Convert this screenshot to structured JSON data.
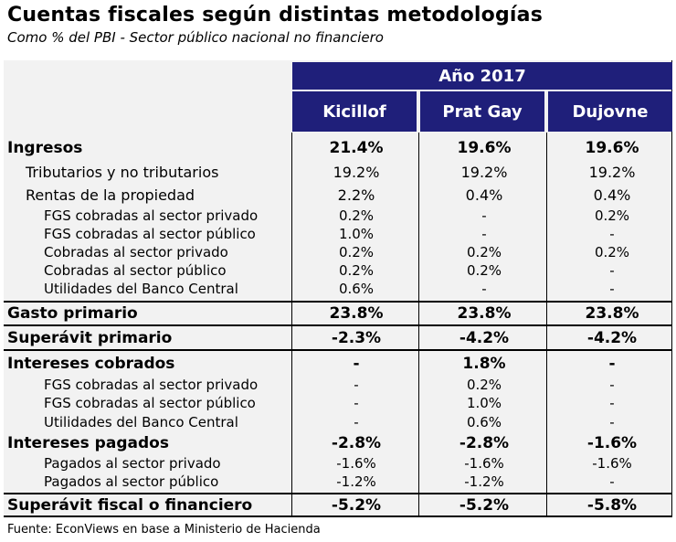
{
  "title": "Cuentas fiscales según distintas metodologías",
  "subtitle": "Como % del PBI - Sector público nacional no financiero",
  "header": {
    "year": "Año 2017",
    "columns": [
      "Kicillof",
      "Prat Gay",
      "Dujovne"
    ]
  },
  "rows": [
    {
      "label": "Ingresos",
      "values": [
        "21.4%",
        "19.6%",
        "19.6%"
      ]
    },
    {
      "label": "Tributarios y no tributarios",
      "values": [
        "19.2%",
        "19.2%",
        "19.2%"
      ]
    },
    {
      "label": "Rentas de la propiedad",
      "values": [
        "2.2%",
        "0.4%",
        "0.4%"
      ]
    },
    {
      "label": "FGS cobradas al sector privado",
      "values": [
        "0.2%",
        "-",
        "0.2%"
      ]
    },
    {
      "label": "FGS cobradas al sector público",
      "values": [
        "1.0%",
        "-",
        "-"
      ]
    },
    {
      "label": "Cobradas al sector privado",
      "values": [
        "0.2%",
        "0.2%",
        "0.2%"
      ]
    },
    {
      "label": "Cobradas al sector público",
      "values": [
        "0.2%",
        "0.2%",
        "-"
      ]
    },
    {
      "label": "Utilidades del Banco Central",
      "values": [
        "0.6%",
        "-",
        "-"
      ]
    },
    {
      "label": "Gasto primario",
      "values": [
        "23.8%",
        "23.8%",
        "23.8%"
      ]
    },
    {
      "label": "Superávit primario",
      "values": [
        "-2.3%",
        "-4.2%",
        "-4.2%"
      ]
    },
    {
      "label": "Intereses cobrados",
      "values": [
        "-",
        "1.8%",
        "-"
      ]
    },
    {
      "label": "FGS cobradas al sector privado",
      "values": [
        "-",
        "0.2%",
        "-"
      ]
    },
    {
      "label": "FGS cobradas al sector público",
      "values": [
        "-",
        "1.0%",
        "-"
      ]
    },
    {
      "label": "Utilidades del Banco Central",
      "values": [
        "-",
        "0.6%",
        "-"
      ]
    },
    {
      "label": "Intereses pagados",
      "values": [
        "-2.8%",
        "-2.8%",
        "-1.6%"
      ]
    },
    {
      "label": "Pagados al sector privado",
      "values": [
        "-1.6%",
        "-1.6%",
        "-1.6%"
      ]
    },
    {
      "label": "Pagados al sector público",
      "values": [
        "-1.2%",
        "-1.2%",
        "-"
      ]
    },
    {
      "label": "Superávit fiscal o financiero",
      "values": [
        "-5.2%",
        "-5.2%",
        "-5.8%"
      ]
    }
  ],
  "footer": "Fuente: EconViews en base a Ministerio de Hacienda",
  "colors": {
    "header_bg": "#1f1f7a",
    "panel_bg": "#f2f2f2"
  }
}
